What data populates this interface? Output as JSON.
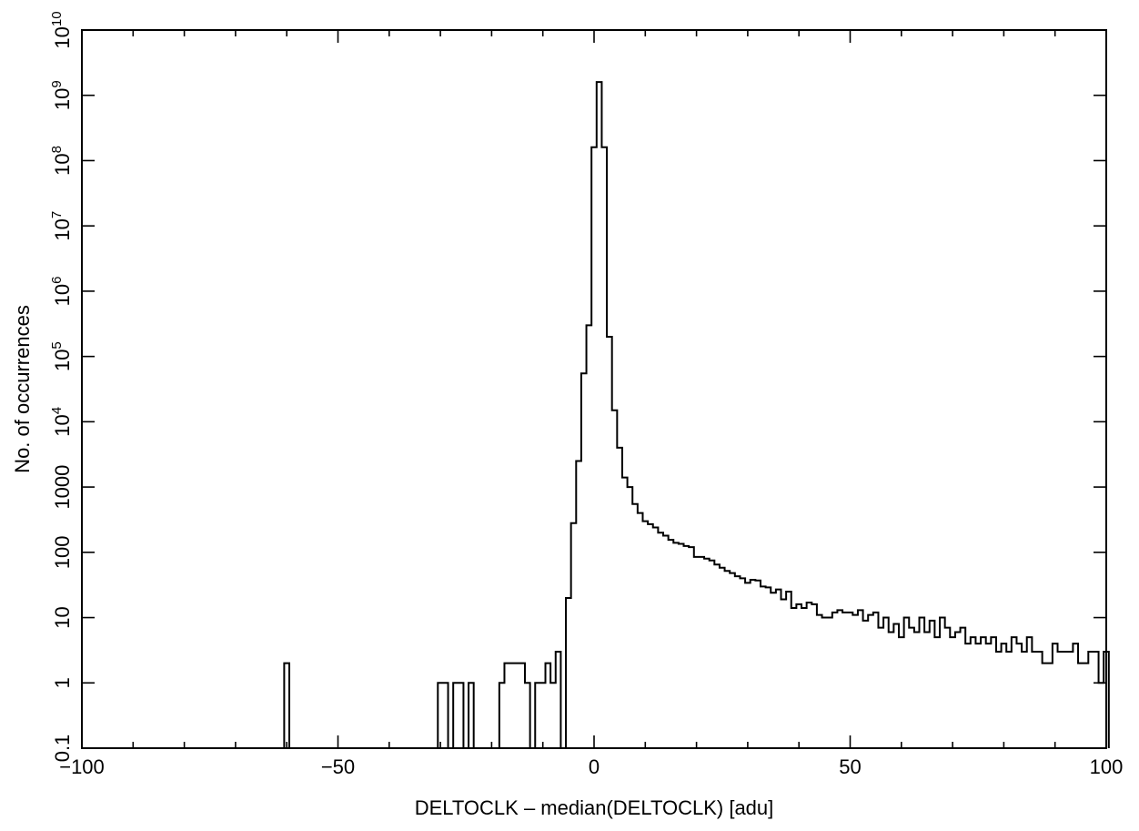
{
  "chart_data": {
    "type": "histogram",
    "xlabel": "DELTOCLK – median(DELTOCLK) [adu]",
    "ylabel": "No. of occurrences",
    "xlim": [
      -100,
      100
    ],
    "ylim": [
      0.1,
      10000000000
    ],
    "y_scale": "log",
    "grid": false,
    "bin_width": 1,
    "x_ticks": [
      -100,
      -50,
      0,
      50,
      100
    ],
    "x_tick_labels": [
      "−100",
      "−50",
      "0",
      "50",
      "100"
    ],
    "y_ticks": [
      0.1,
      1,
      10,
      100,
      1000,
      10000,
      100000,
      1000000,
      10000000,
      100000000,
      1000000000,
      10000000000
    ],
    "y_tick_labels": [
      {
        "base": "0.1",
        "exp": ""
      },
      {
        "base": "1",
        "exp": ""
      },
      {
        "base": "10",
        "exp": ""
      },
      {
        "base": "100",
        "exp": ""
      },
      {
        "base": "1000",
        "exp": ""
      },
      {
        "base": "10",
        "exp": "4"
      },
      {
        "base": "10",
        "exp": "5"
      },
      {
        "base": "10",
        "exp": "6"
      },
      {
        "base": "10",
        "exp": "7"
      },
      {
        "base": "10",
        "exp": "8"
      },
      {
        "base": "10",
        "exp": "9"
      },
      {
        "base": "10",
        "exp": "10"
      }
    ],
    "bins": [
      [
        -60.5,
        2
      ],
      [
        -30.5,
        1
      ],
      [
        -29.5,
        1
      ],
      [
        -27.5,
        1
      ],
      [
        -26.5,
        1
      ],
      [
        -24.5,
        1
      ],
      [
        -18.5,
        1
      ],
      [
        -17.5,
        2
      ],
      [
        -16.5,
        2
      ],
      [
        -15.5,
        2
      ],
      [
        -14.5,
        2
      ],
      [
        -13.5,
        1
      ],
      [
        -11.5,
        1
      ],
      [
        -10.5,
        1
      ],
      [
        -9.5,
        2
      ],
      [
        -8.5,
        1
      ],
      [
        -7.5,
        3
      ],
      [
        -5.5,
        20
      ],
      [
        -4.5,
        280
      ],
      [
        -3.5,
        2500
      ],
      [
        -2.5,
        55000
      ],
      [
        -1.5,
        300000
      ],
      [
        -0.5,
        160000000
      ],
      [
        0.5,
        1600000000
      ],
      [
        1.5,
        160000000
      ],
      [
        2.5,
        200000
      ],
      [
        3.5,
        15000
      ],
      [
        4.5,
        4000
      ],
      [
        5.5,
        1400
      ],
      [
        6.5,
        1000
      ],
      [
        7.5,
        550
      ],
      [
        8.5,
        400
      ],
      [
        9.5,
        300
      ],
      [
        10.5,
        270
      ],
      [
        11.5,
        240
      ],
      [
        12.5,
        200
      ],
      [
        13.5,
        180
      ],
      [
        14.5,
        155
      ],
      [
        15.5,
        140
      ],
      [
        16.5,
        135
      ],
      [
        17.5,
        125
      ],
      [
        18.5,
        120
      ],
      [
        19.5,
        85
      ],
      [
        20.5,
        85
      ],
      [
        21.5,
        80
      ],
      [
        22.5,
        75
      ],
      [
        23.5,
        65
      ],
      [
        24.5,
        58
      ],
      [
        25.5,
        52
      ],
      [
        26.5,
        48
      ],
      [
        27.5,
        43
      ],
      [
        28.5,
        40
      ],
      [
        29.5,
        34
      ],
      [
        30.5,
        38
      ],
      [
        31.5,
        37
      ],
      [
        32.5,
        30
      ],
      [
        33.5,
        29
      ],
      [
        34.5,
        24
      ],
      [
        35.5,
        27
      ],
      [
        36.5,
        19
      ],
      [
        37.5,
        25
      ],
      [
        38.5,
        14
      ],
      [
        39.5,
        16
      ],
      [
        40.5,
        14
      ],
      [
        41.5,
        17
      ],
      [
        42.5,
        16
      ],
      [
        43.5,
        11
      ],
      [
        44.5,
        10
      ],
      [
        45.5,
        10
      ],
      [
        46.5,
        12
      ],
      [
        47.5,
        13
      ],
      [
        48.5,
        12
      ],
      [
        49.5,
        12
      ],
      [
        50.5,
        11
      ],
      [
        51.5,
        13
      ],
      [
        52.5,
        9
      ],
      [
        53.5,
        11
      ],
      [
        54.5,
        12
      ],
      [
        55.5,
        7
      ],
      [
        56.5,
        10
      ],
      [
        57.5,
        6
      ],
      [
        58.5,
        8
      ],
      [
        59.5,
        5
      ],
      [
        60.5,
        10
      ],
      [
        61.5,
        7
      ],
      [
        62.5,
        6
      ],
      [
        63.5,
        10
      ],
      [
        64.5,
        6
      ],
      [
        65.5,
        9
      ],
      [
        66.5,
        5
      ],
      [
        67.5,
        10
      ],
      [
        68.5,
        7
      ],
      [
        69.5,
        5
      ],
      [
        70.5,
        6
      ],
      [
        71.5,
        7
      ],
      [
        72.5,
        4
      ],
      [
        73.5,
        5
      ],
      [
        74.5,
        4
      ],
      [
        75.5,
        5
      ],
      [
        76.5,
        4
      ],
      [
        77.5,
        5
      ],
      [
        78.5,
        3
      ],
      [
        79.5,
        4
      ],
      [
        80.5,
        3
      ],
      [
        81.5,
        5
      ],
      [
        82.5,
        4
      ],
      [
        83.5,
        3
      ],
      [
        84.5,
        5
      ],
      [
        85.5,
        3
      ],
      [
        86.5,
        3
      ],
      [
        87.5,
        2
      ],
      [
        88.5,
        2
      ],
      [
        89.5,
        4
      ],
      [
        90.5,
        3
      ],
      [
        91.5,
        3
      ],
      [
        92.5,
        3
      ],
      [
        93.5,
        4
      ],
      [
        94.5,
        2
      ],
      [
        95.5,
        2
      ],
      [
        96.5,
        3
      ],
      [
        97.5,
        3
      ],
      [
        98.5,
        1
      ],
      [
        99.5,
        3
      ]
    ]
  }
}
